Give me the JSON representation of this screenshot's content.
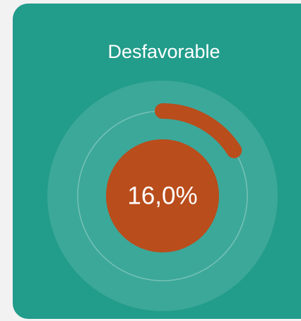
{
  "chart_data": {
    "type": "gauge",
    "title": "Desfavorable",
    "value": 16,
    "value_label": "16,0%",
    "color": "#b94d1c",
    "ylim": [
      0,
      100
    ]
  }
}
